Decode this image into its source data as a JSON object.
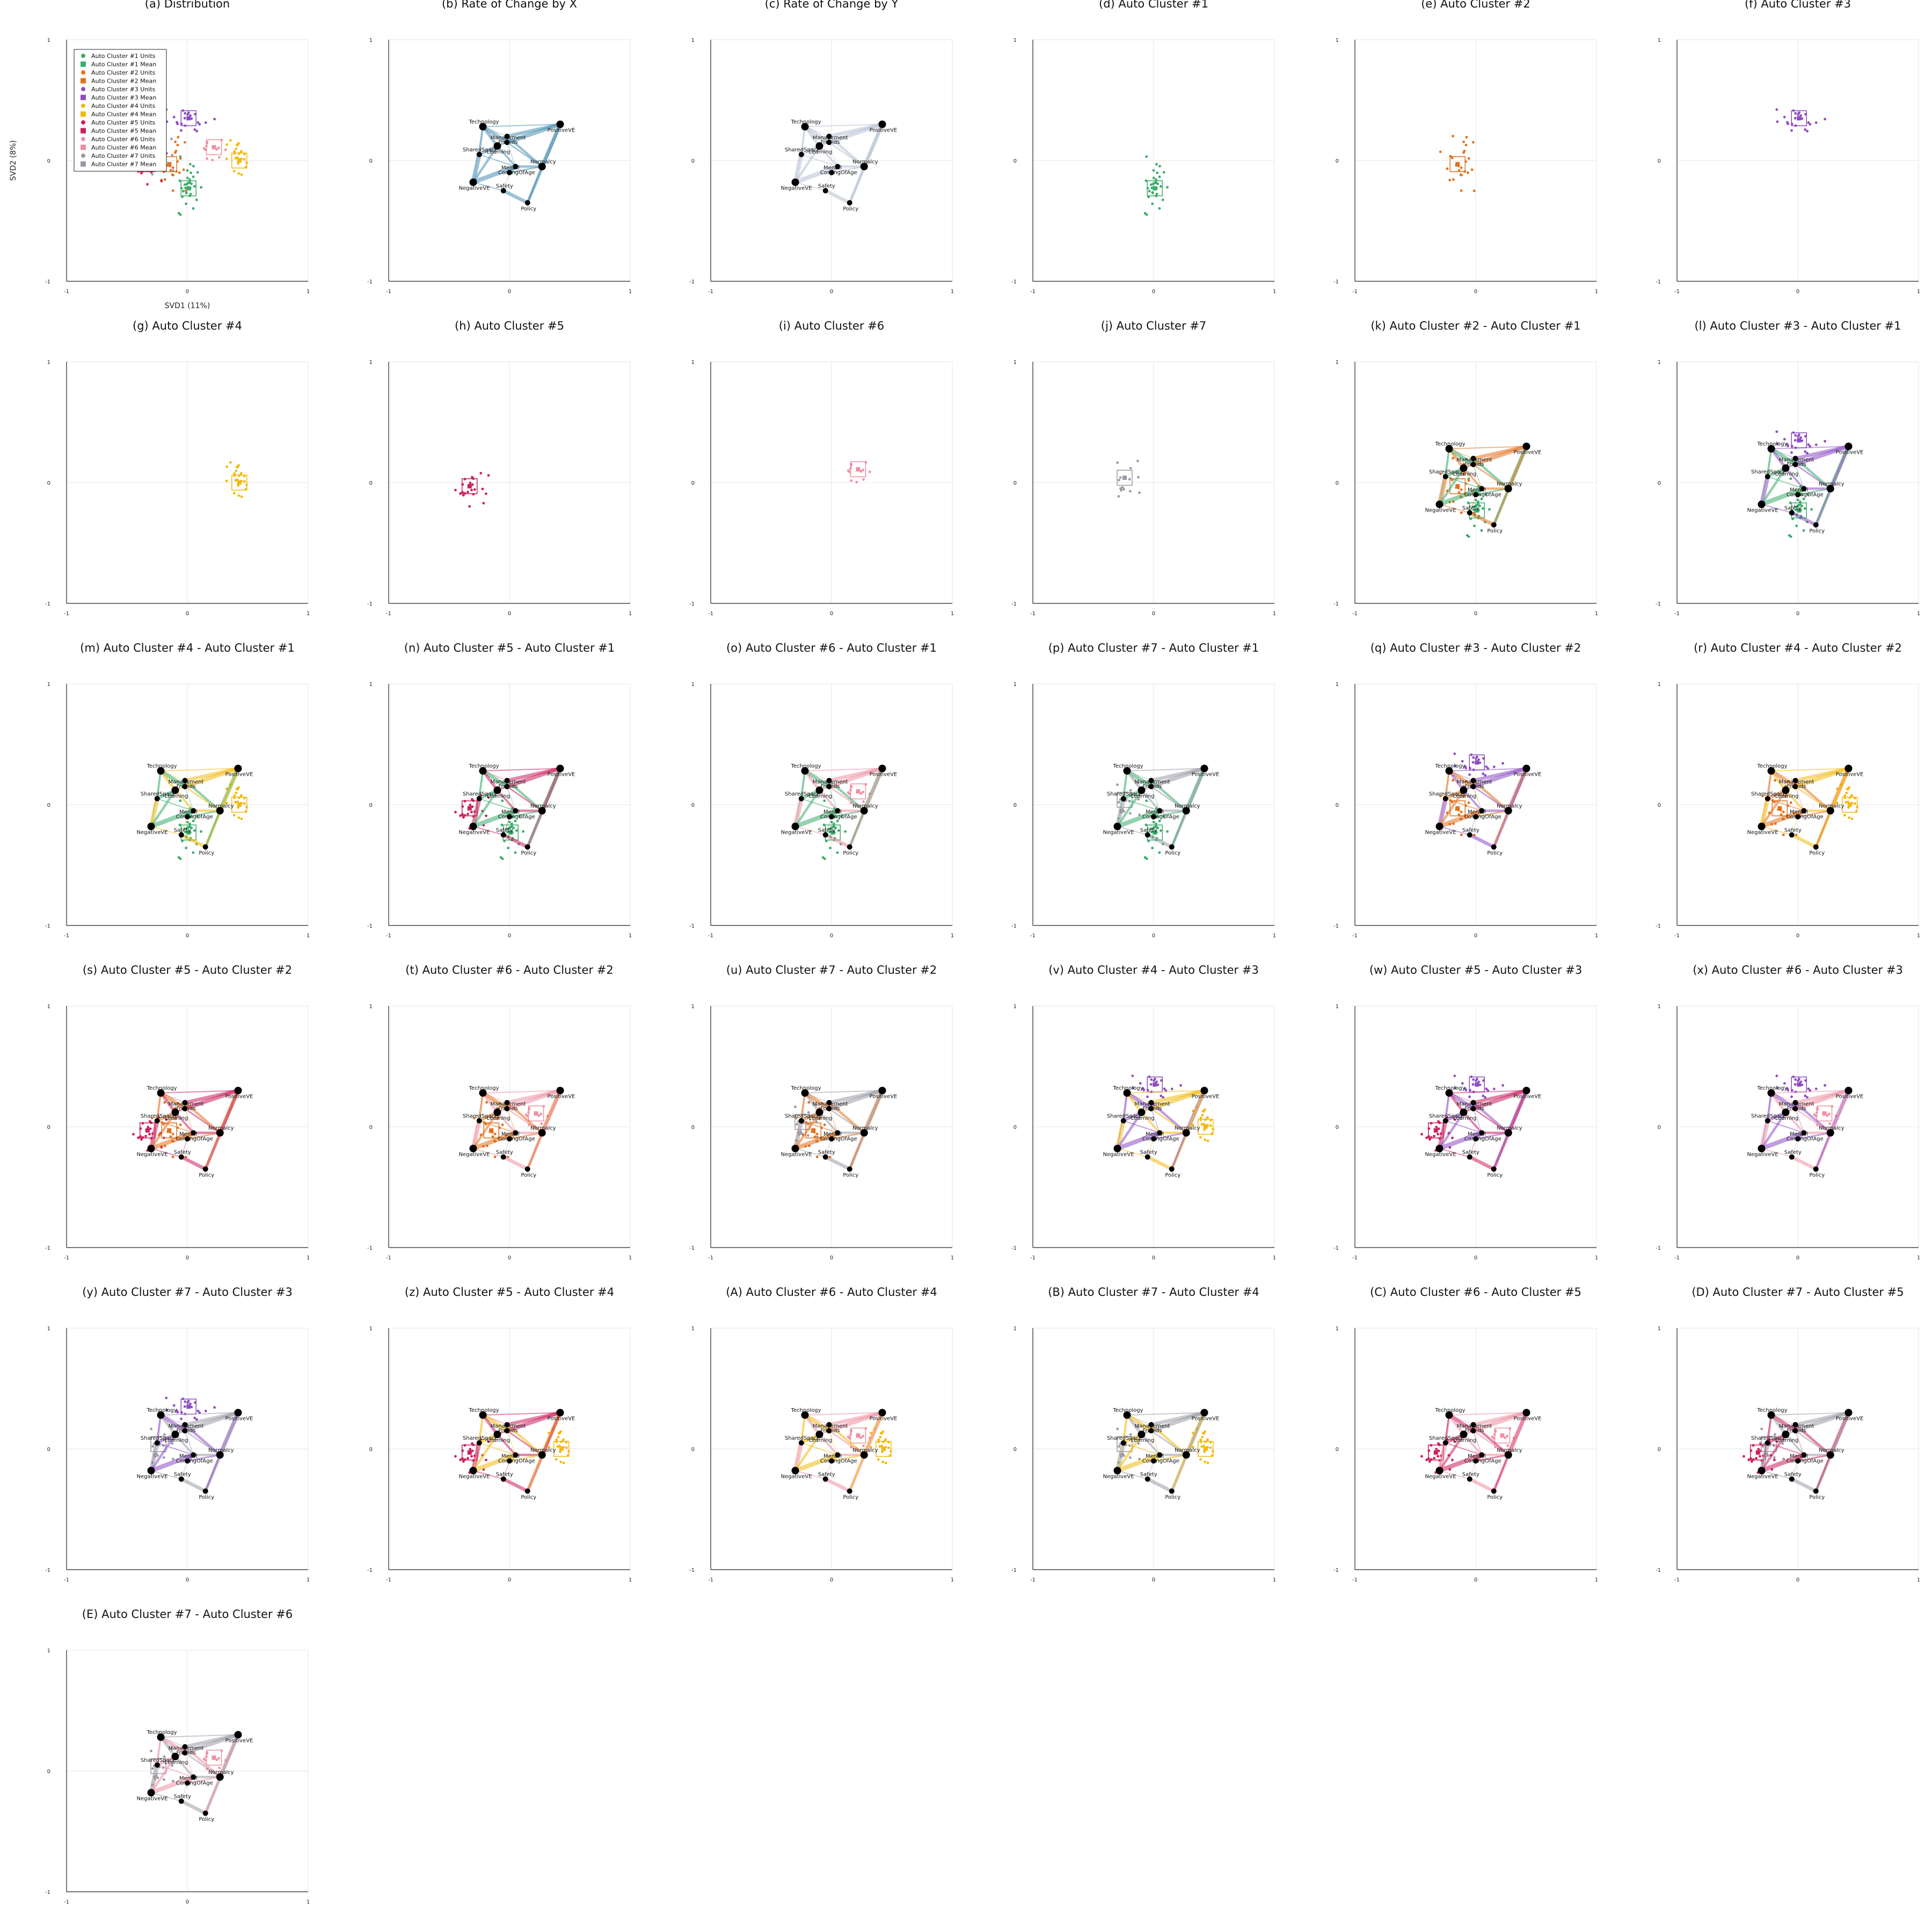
{
  "figure": {
    "grid_columns": 6,
    "colors": {
      "c1": "#3aad6b",
      "c2": "#e2711d",
      "c3": "#8e4cc4",
      "c4": "#f2b90f",
      "c5": "#cc1f5e",
      "c6": "#ef8fa3",
      "c7": "#9a9aa6",
      "rate_x": "#4b8fb2",
      "rate_y": "#b7c0d3",
      "node": "#000000"
    }
  },
  "chart_data": {
    "type": "scatter",
    "xlim": [
      -1,
      1
    ],
    "ylim": [
      -1,
      1
    ],
    "ticks": [
      "-1",
      "0",
      "1"
    ],
    "grid": true,
    "xlabel": "SVD1 (11%)",
    "ylabel": "SVD2 (8%)",
    "legend": {
      "placement": "top-left",
      "entries": [
        {
          "label": "Auto Cluster #1 Units",
          "color": "c1",
          "marker": "circle"
        },
        {
          "label": "Auto Cluster #1 Mean",
          "color": "c1",
          "marker": "square"
        },
        {
          "label": "Auto Cluster #2 Units",
          "color": "c2",
          "marker": "circle"
        },
        {
          "label": "Auto Cluster #2 Mean",
          "color": "c2",
          "marker": "square"
        },
        {
          "label": "Auto Cluster #3 Units",
          "color": "c3",
          "marker": "circle"
        },
        {
          "label": "Auto Cluster #3 Mean",
          "color": "c3",
          "marker": "square"
        },
        {
          "label": "Auto Cluster #4 Units",
          "color": "c4",
          "marker": "circle"
        },
        {
          "label": "Auto Cluster #4 Mean",
          "color": "c4",
          "marker": "square"
        },
        {
          "label": "Auto Cluster #5 Units",
          "color": "c5",
          "marker": "circle"
        },
        {
          "label": "Auto Cluster #5 Mean",
          "color": "c5",
          "marker": "square"
        },
        {
          "label": "Auto Cluster #6 Units",
          "color": "c6",
          "marker": "circle"
        },
        {
          "label": "Auto Cluster #6 Mean",
          "color": "c6",
          "marker": "square"
        },
        {
          "label": "Auto Cluster #7 Units",
          "color": "c7",
          "marker": "circle"
        },
        {
          "label": "Auto Cluster #7 Mean",
          "color": "c7",
          "marker": "square"
        }
      ]
    },
    "nodes": [
      {
        "label": "Technology",
        "x": -0.22,
        "y": 0.28
      },
      {
        "label": "Friends",
        "x": -0.02,
        "y": 0.2
      },
      {
        "label": "Management",
        "x": -0.02,
        "y": 0.15
      },
      {
        "label": "Learning",
        "x": -0.1,
        "y": 0.12
      },
      {
        "label": "SharedSpace",
        "x": -0.25,
        "y": 0.05
      },
      {
        "label": "ComingOfAge",
        "x": 0.05,
        "y": -0.05
      },
      {
        "label": "Mental",
        "x": 0.0,
        "y": -0.1
      },
      {
        "label": "PositiveVE",
        "x": 0.42,
        "y": 0.3
      },
      {
        "label": "Normalcy",
        "x": 0.27,
        "y": -0.05
      },
      {
        "label": "NegativeVE",
        "x": -0.3,
        "y": -0.18
      },
      {
        "label": "Safety",
        "x": -0.05,
        "y": -0.25
      },
      {
        "label": "Policy",
        "x": 0.15,
        "y": -0.35
      }
    ],
    "clusters": [
      {
        "id": 1,
        "color": "c1",
        "mean": [
          0.01,
          -0.23
        ]
      },
      {
        "id": 2,
        "color": "c2",
        "mean": [
          -0.15,
          -0.03
        ]
      },
      {
        "id": 3,
        "color": "c3",
        "mean": [
          0.01,
          0.35
        ]
      },
      {
        "id": 4,
        "color": "c4",
        "mean": [
          0.43,
          0.0
        ]
      },
      {
        "id": 5,
        "color": "c5",
        "mean": [
          -0.33,
          -0.03
        ]
      },
      {
        "id": 6,
        "color": "c6",
        "mean": [
          0.22,
          0.11
        ]
      },
      {
        "id": 7,
        "color": "c7",
        "mean": [
          -0.24,
          0.04
        ]
      }
    ],
    "panels": [
      {
        "title": "(a) Distribution",
        "kind": "distribution"
      },
      {
        "title": "(b) Rate of Change by X",
        "kind": "rate",
        "color": "rate_x"
      },
      {
        "title": "(c) Rate of Change by Y",
        "kind": "rate",
        "color": "rate_y"
      },
      {
        "title": "(d) Auto Cluster #1",
        "kind": "single",
        "c": [
          1
        ]
      },
      {
        "title": "(e) Auto Cluster #2",
        "kind": "single",
        "c": [
          2
        ]
      },
      {
        "title": "(f) Auto Cluster #3",
        "kind": "single",
        "c": [
          3
        ]
      },
      {
        "title": "(g) Auto Cluster #4",
        "kind": "single",
        "c": [
          4
        ]
      },
      {
        "title": "(h) Auto Cluster #5",
        "kind": "single",
        "c": [
          5
        ]
      },
      {
        "title": "(i) Auto Cluster #6",
        "kind": "single",
        "c": [
          6
        ]
      },
      {
        "title": "(j) Auto Cluster #7",
        "kind": "single",
        "c": [
          7
        ]
      },
      {
        "title": "(k) Auto Cluster #2 - Auto Cluster #1",
        "kind": "diff",
        "c": [
          2,
          1
        ]
      },
      {
        "title": "(l) Auto Cluster #3 - Auto Cluster #1",
        "kind": "diff",
        "c": [
          3,
          1
        ]
      },
      {
        "title": "(m) Auto Cluster #4 - Auto Cluster #1",
        "kind": "diff",
        "c": [
          4,
          1
        ]
      },
      {
        "title": "(n) Auto Cluster #5 - Auto Cluster #1",
        "kind": "diff",
        "c": [
          5,
          1
        ]
      },
      {
        "title": "(o) Auto Cluster #6 - Auto Cluster #1",
        "kind": "diff",
        "c": [
          6,
          1
        ]
      },
      {
        "title": "(p) Auto Cluster #7 - Auto Cluster #1",
        "kind": "diff",
        "c": [
          7,
          1
        ]
      },
      {
        "title": "(q) Auto Cluster #3 - Auto Cluster #2",
        "kind": "diff",
        "c": [
          3,
          2
        ]
      },
      {
        "title": "(r) Auto Cluster #4 - Auto Cluster #2",
        "kind": "diff",
        "c": [
          4,
          2
        ]
      },
      {
        "title": "(s) Auto Cluster #5 - Auto Cluster #2",
        "kind": "diff",
        "c": [
          5,
          2
        ]
      },
      {
        "title": "(t) Auto Cluster #6 - Auto Cluster #2",
        "kind": "diff",
        "c": [
          6,
          2
        ]
      },
      {
        "title": "(u) Auto Cluster #7 - Auto Cluster #2",
        "kind": "diff",
        "c": [
          7,
          2
        ]
      },
      {
        "title": "(v) Auto Cluster #4 - Auto Cluster #3",
        "kind": "diff",
        "c": [
          4,
          3
        ]
      },
      {
        "title": "(w) Auto Cluster #5 - Auto Cluster #3",
        "kind": "diff",
        "c": [
          5,
          3
        ]
      },
      {
        "title": "(x) Auto Cluster #6 - Auto Cluster #3",
        "kind": "diff",
        "c": [
          6,
          3
        ]
      },
      {
        "title": "(y) Auto Cluster #7 - Auto Cluster #3",
        "kind": "diff",
        "c": [
          7,
          3
        ]
      },
      {
        "title": "(z) Auto Cluster #5 - Auto Cluster #4",
        "kind": "diff",
        "c": [
          5,
          4
        ]
      },
      {
        "title": "(A) Auto Cluster #6 - Auto Cluster #4",
        "kind": "diff",
        "c": [
          6,
          4
        ]
      },
      {
        "title": "(B) Auto Cluster #7 - Auto Cluster #4",
        "kind": "diff",
        "c": [
          7,
          4
        ]
      },
      {
        "title": "(C) Auto Cluster #6 - Auto Cluster #5",
        "kind": "diff",
        "c": [
          6,
          5
        ]
      },
      {
        "title": "(D) Auto Cluster #7 - Auto Cluster #5",
        "kind": "diff",
        "c": [
          7,
          5
        ]
      },
      {
        "title": "(E) Auto Cluster #7 - Auto Cluster #6",
        "kind": "diff",
        "c": [
          7,
          6
        ]
      }
    ]
  }
}
